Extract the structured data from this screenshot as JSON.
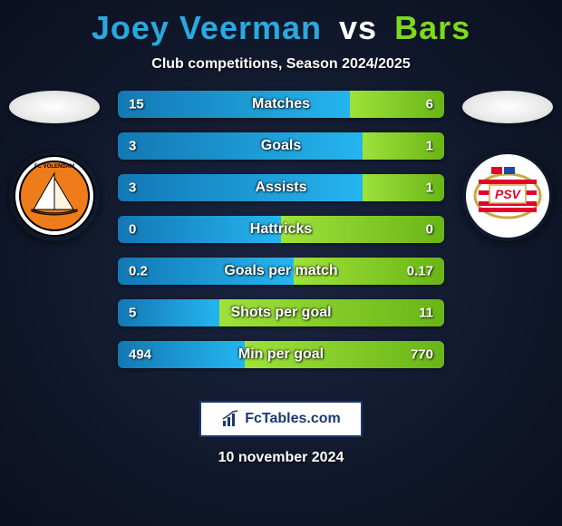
{
  "title_left": "Joey Veerman",
  "title_vs": "vs",
  "title_right": "Bars",
  "title_color_left": "#2aa8e0",
  "title_color_vs": "#ffffff",
  "title_color_right": "#7fd91f",
  "subtitle": "Club competitions, Season 2024/2025",
  "date": "10 november 2024",
  "footer_brand": "FcTables.com",
  "left_club": {
    "name": "FC Volendam",
    "badge_bg": "#ffffff",
    "badge_inner": "#ee7c1a",
    "badge_border": "#0a0a0a"
  },
  "right_club": {
    "name": "PSV",
    "badge_bg": "#ffffff",
    "badge_stripes": [
      "#e4002b",
      "#ffffff"
    ],
    "badge_text": "PSV",
    "badge_text_color": "#e4002b"
  },
  "bar_track_color": "#303a55",
  "left_bar_gradient": [
    "#1378b4",
    "#25b5ef"
  ],
  "right_bar_gradient": [
    "#9ee23a",
    "#69b516"
  ],
  "text_color": "#ffffff",
  "rows": [
    {
      "label": "Matches",
      "left_val": "15",
      "right_val": "6",
      "left_pct": 71,
      "right_pct": 29
    },
    {
      "label": "Goals",
      "left_val": "3",
      "right_val": "1",
      "left_pct": 75,
      "right_pct": 25
    },
    {
      "label": "Assists",
      "left_val": "3",
      "right_val": "1",
      "left_pct": 75,
      "right_pct": 25
    },
    {
      "label": "Hattricks",
      "left_val": "0",
      "right_val": "0",
      "left_pct": 50,
      "right_pct": 50
    },
    {
      "label": "Goals per match",
      "left_val": "0.2",
      "right_val": "0.17",
      "left_pct": 54,
      "right_pct": 46
    },
    {
      "label": "Shots per goal",
      "left_val": "5",
      "right_val": "11",
      "left_pct": 31,
      "right_pct": 69
    },
    {
      "label": "Min per goal",
      "left_val": "494",
      "right_val": "770",
      "left_pct": 39,
      "right_pct": 61
    }
  ]
}
